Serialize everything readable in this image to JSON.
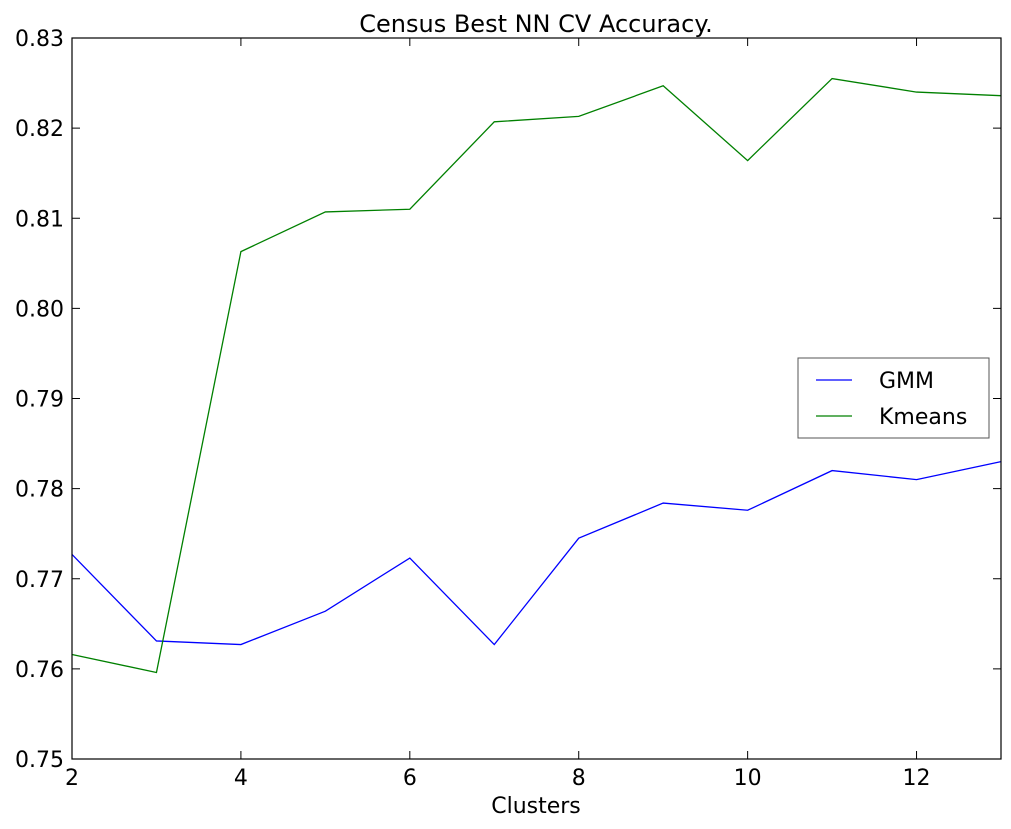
{
  "chart_data": {
    "type": "line",
    "title": "Census Best NN CV Accuracy.",
    "xlabel": "Clusters",
    "ylabel": "",
    "xlim": [
      2,
      13
    ],
    "ylim": [
      0.75,
      0.83
    ],
    "x_ticks": [
      2,
      4,
      6,
      8,
      10,
      12
    ],
    "y_ticks": [
      0.75,
      0.76,
      0.77,
      0.78,
      0.79,
      0.8,
      0.81,
      0.82,
      0.83
    ],
    "x_tick_labels": [
      "2",
      "4",
      "6",
      "8",
      "10",
      "12"
    ],
    "y_tick_labels": [
      "0.75",
      "0.76",
      "0.77",
      "0.78",
      "0.79",
      "0.80",
      "0.81",
      "0.82",
      "0.83"
    ],
    "grid": false,
    "legend_position": "center-right",
    "x": [
      2,
      3,
      4,
      5,
      6,
      7,
      8,
      9,
      10,
      11,
      12,
      13
    ],
    "series": [
      {
        "name": "GMM",
        "color": "#0000ff",
        "values": [
          0.7727,
          0.7631,
          0.7627,
          0.7664,
          0.7723,
          0.7627,
          0.7745,
          0.7784,
          0.7776,
          0.782,
          0.781,
          0.783
        ]
      },
      {
        "name": "Kmeans",
        "color": "#008000",
        "values": [
          0.7616,
          0.7596,
          0.8063,
          0.8107,
          0.811,
          0.8207,
          0.8213,
          0.8247,
          0.8164,
          0.8255,
          0.824,
          0.8236
        ]
      }
    ]
  }
}
